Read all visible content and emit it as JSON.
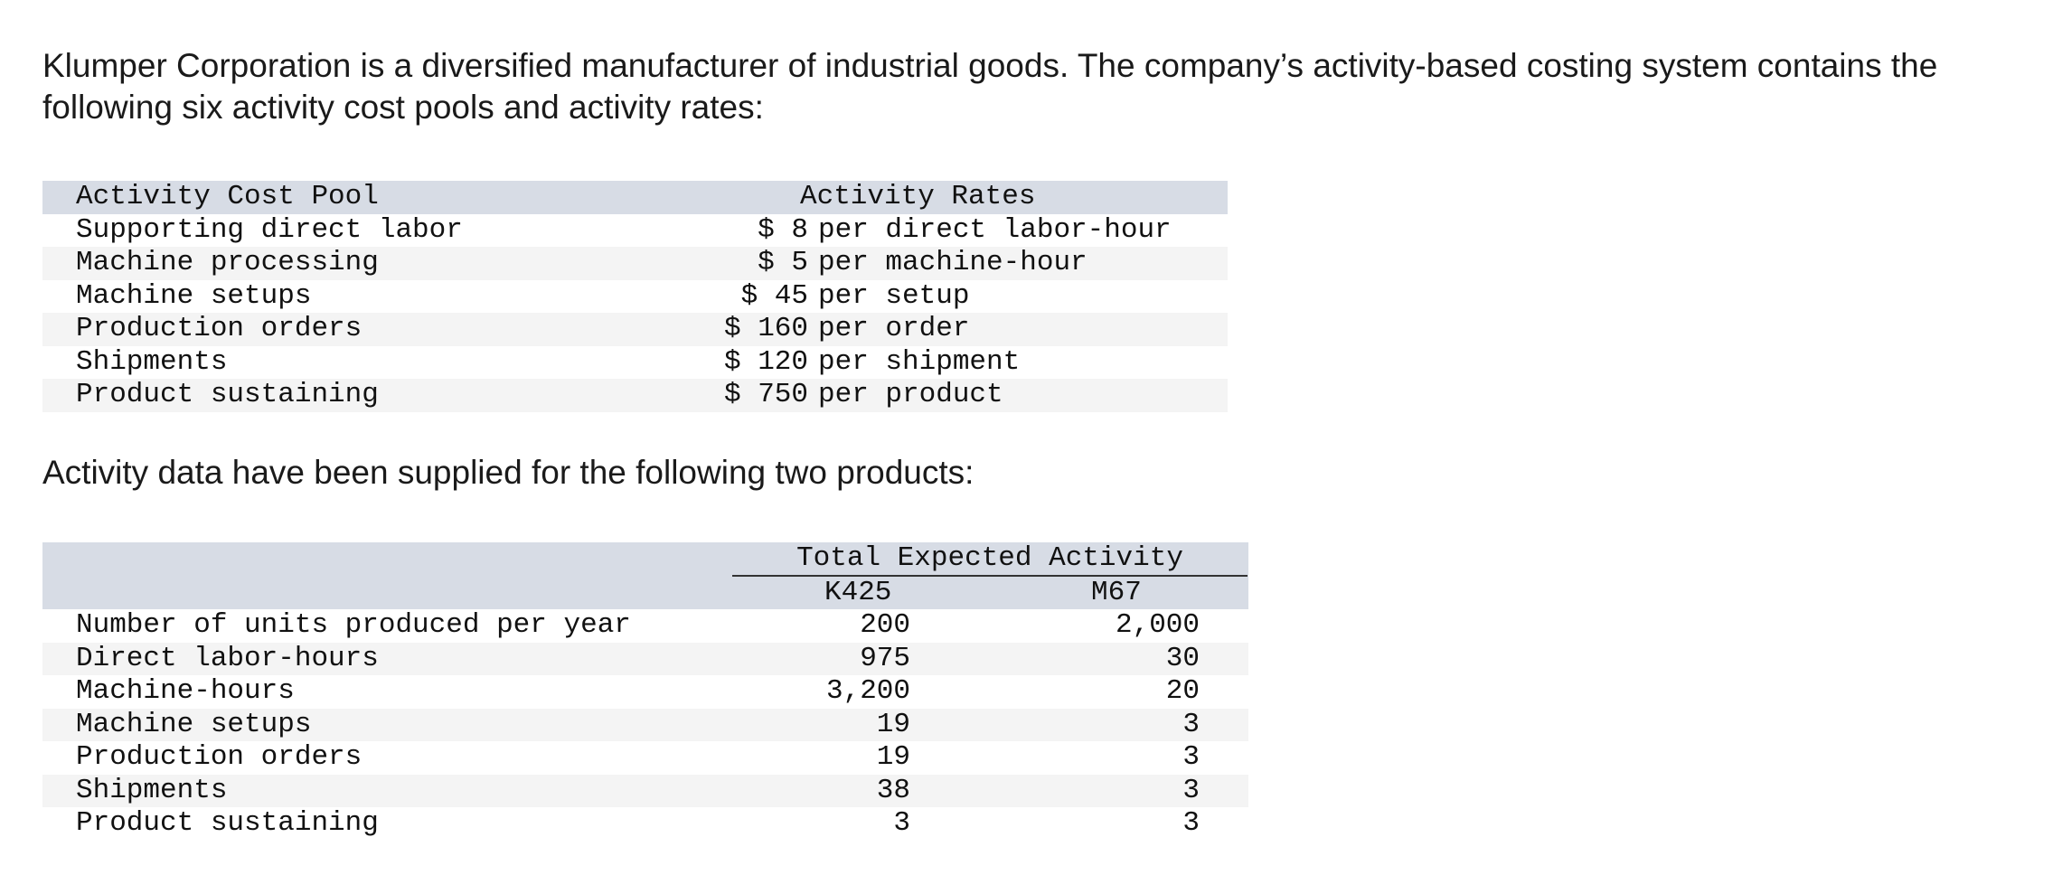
{
  "intro": "Klumper Corporation is a diversified manufacturer of industrial goods. The company’s activity-based costing system contains the following six activity cost pools and activity rates:",
  "rates_table": {
    "header_pool": "Activity Cost Pool",
    "header_rates": "Activity Rates",
    "rows": [
      {
        "pool": "Supporting direct labor",
        "currency": "$",
        "rate": "8",
        "unit": "per direct labor-hour"
      },
      {
        "pool": "Machine processing",
        "currency": "$",
        "rate": "5",
        "unit": "per machine-hour"
      },
      {
        "pool": "Machine setups",
        "currency": "$",
        "rate": "45",
        "unit": "per setup"
      },
      {
        "pool": "Production orders",
        "currency": "$",
        "rate": "160",
        "unit": "per order"
      },
      {
        "pool": "Shipments",
        "currency": "$",
        "rate": "120",
        "unit": "per shipment"
      },
      {
        "pool": "Product sustaining",
        "currency": "$",
        "rate": "750",
        "unit": "per product"
      }
    ]
  },
  "intro2": "Activity data have been supplied for the following two products:",
  "activity_table": {
    "group_header": "Total Expected Activity",
    "col_k": "K425",
    "col_m": "M67",
    "rows": [
      {
        "label": "Number of units produced per year",
        "k": "200",
        "m": "2,000"
      },
      {
        "label": "Direct labor-hours",
        "k": "975",
        "m": "30"
      },
      {
        "label": "Machine-hours",
        "k": "3,200",
        "m": "20"
      },
      {
        "label": "Machine setups",
        "k": "19",
        "m": "3"
      },
      {
        "label": "Production orders",
        "k": "19",
        "m": "3"
      },
      {
        "label": "Shipments",
        "k": "38",
        "m": "3"
      },
      {
        "label": "Product sustaining",
        "k": "3",
        "m": "3"
      }
    ]
  }
}
